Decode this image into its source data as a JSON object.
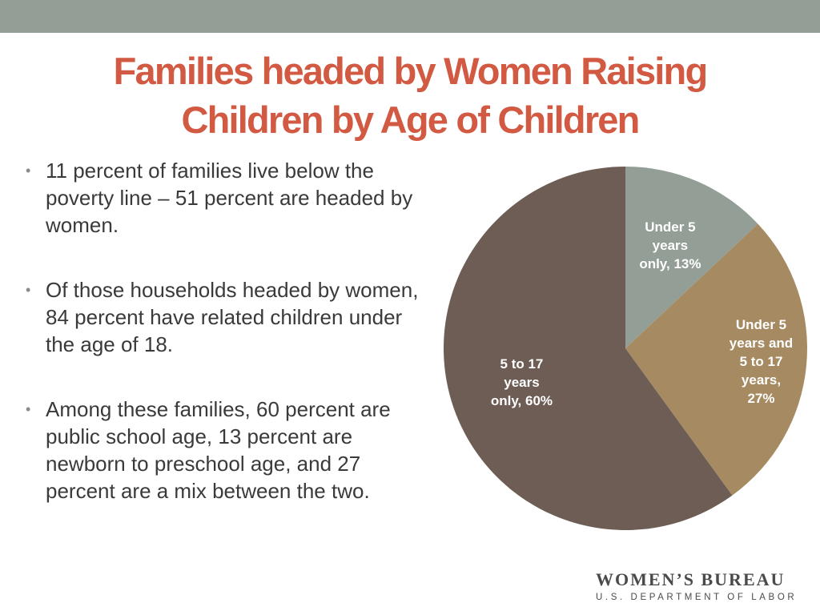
{
  "header": {
    "title_line1": "Families headed by Women Raising",
    "title_line2": "Children by Age of Children"
  },
  "bullets": [
    {
      "symbol": "•",
      "text": "11 percent of families live below the poverty line – 51 percent are headed by women."
    },
    {
      "symbol": "•",
      "text": "Of those households headed by women, 84 percent have related children under the age of 18."
    },
    {
      "symbol": "•",
      "text": "Among these families, 60 percent are public school age, 13 percent are newborn to preschool age, and 27 percent are a mix between the two."
    }
  ],
  "chart_data": {
    "type": "pie",
    "start_angle_deg": 0,
    "direction": "clockwise",
    "slices": [
      {
        "label": "Under 5 years only",
        "value": 13,
        "color": "#939e97",
        "label_lines": [
          "Under 5",
          "years",
          "only, 13%"
        ]
      },
      {
        "label": "Under 5 years and 5 to 17 years",
        "value": 27,
        "color": "#a68a62",
        "label_lines": [
          "Under 5",
          "years and",
          "5 to 17",
          "years,",
          "27%"
        ]
      },
      {
        "label": "5 to 17 years only",
        "value": 60,
        "color": "#6d5d55",
        "label_lines": [
          "5 to 17",
          "years",
          "only, 60%"
        ]
      }
    ]
  },
  "logo": {
    "line1": "WOMEN’S BUREAU",
    "line2": "U.S. DEPARTMENT OF LABOR"
  },
  "colors": {
    "title": "#d25a43",
    "top_bar": "#939e97",
    "body_text": "#3a3a3a"
  }
}
